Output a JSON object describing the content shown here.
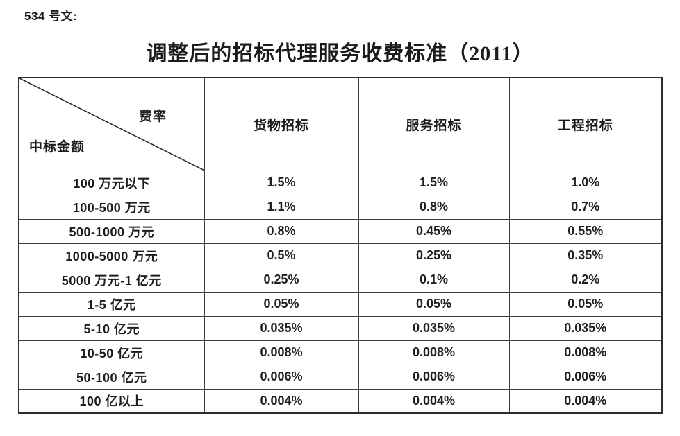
{
  "page": {
    "doc_number": "534 号文:",
    "title": "调整后的招标代理服务收费标准（2011）"
  },
  "table": {
    "corner": {
      "top_right_label": "费率",
      "bottom_left_label": "中标金额"
    },
    "columns": [
      "货物招标",
      "服务招标",
      "工程招标"
    ],
    "rows": [
      {
        "label": "100 万元以下",
        "values": [
          "1.5%",
          "1.5%",
          "1.0%"
        ]
      },
      {
        "label": "100-500 万元",
        "values": [
          "1.1%",
          "0.8%",
          "0.7%"
        ]
      },
      {
        "label": "500-1000 万元",
        "values": [
          "0.8%",
          "0.45%",
          "0.55%"
        ]
      },
      {
        "label": "1000-5000 万元",
        "values": [
          "0.5%",
          "0.25%",
          "0.35%"
        ]
      },
      {
        "label": "5000 万元-1 亿元",
        "values": [
          "0.25%",
          "0.1%",
          "0.2%"
        ]
      },
      {
        "label": "1-5 亿元",
        "values": [
          "0.05%",
          "0.05%",
          "0.05%"
        ]
      },
      {
        "label": "5-10 亿元",
        "values": [
          "0.035%",
          "0.035%",
          "0.035%"
        ]
      },
      {
        "label": "10-50 亿元",
        "values": [
          "0.008%",
          "0.008%",
          "0.008%"
        ]
      },
      {
        "label": "50-100 亿元",
        "values": [
          "0.006%",
          "0.006%",
          "0.006%"
        ]
      },
      {
        "label": "100 亿以上",
        "values": [
          "0.004%",
          "0.004%",
          "0.004%"
        ]
      }
    ],
    "border_color": "#2d2d2d",
    "text_color": "#1c1c1c"
  }
}
